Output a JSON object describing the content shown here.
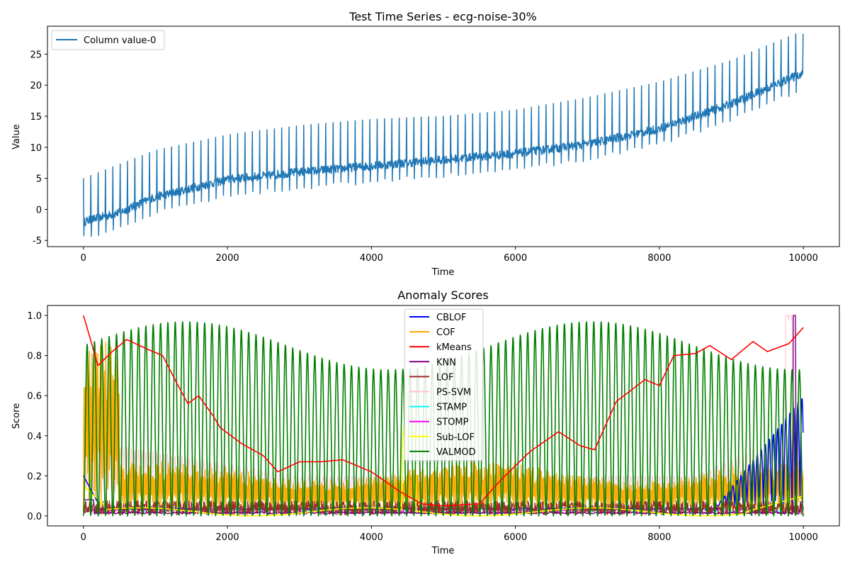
{
  "chart_data": [
    {
      "type": "line",
      "title": "Test Time Series - ecg-noise-30%",
      "xlabel": "Time",
      "ylabel": "Value",
      "xlim": [
        -500,
        10500
      ],
      "ylim": [
        -6,
        29.5
      ],
      "xticks": [
        0,
        2000,
        4000,
        6000,
        8000,
        10000
      ],
      "yticks": [
        -5,
        0,
        5,
        10,
        15,
        20,
        25
      ],
      "legend_position": "upper-left",
      "series": [
        {
          "name": "Column value-0",
          "color": "#1f77b4",
          "description_free": true,
          "baseline_points": [
            [
              0,
              -2
            ],
            [
              500,
              -0.5
            ],
            [
              1000,
              2
            ],
            [
              2000,
              4.8
            ],
            [
              3000,
              6
            ],
            [
              4000,
              7
            ],
            [
              5000,
              8
            ],
            [
              6000,
              9
            ],
            [
              7000,
              10.5
            ],
            [
              8000,
              13
            ],
            [
              9000,
              17
            ],
            [
              9500,
              19.5
            ],
            [
              10000,
              22
            ]
          ],
          "peak_points": [
            [
              0,
              5
            ],
            [
              1000,
              9.5
            ],
            [
              2000,
              12
            ],
            [
              3000,
              13.5
            ],
            [
              4000,
              14.5
            ],
            [
              5000,
              15
            ],
            [
              6000,
              16
            ],
            [
              7000,
              18
            ],
            [
              8000,
              20.5
            ],
            [
              9000,
              24
            ],
            [
              9900,
              28.3
            ]
          ],
          "trough_offset": -2.5,
          "beat_period": 102
        }
      ]
    },
    {
      "type": "line",
      "title": "Anomaly Scores",
      "xlabel": "Time",
      "ylabel": "Score",
      "xlim": [
        -500,
        10500
      ],
      "ylim": [
        -0.05,
        1.05
      ],
      "xticks": [
        0,
        2000,
        4000,
        6000,
        8000,
        10000
      ],
      "yticks": [
        0.0,
        0.2,
        0.4,
        0.6,
        0.8,
        1.0
      ],
      "legend_position": "upper-center",
      "series": [
        {
          "name": "CBLOF",
          "color": "#0000ff"
        },
        {
          "name": "COF",
          "color": "#ffa500"
        },
        {
          "name": "kMeans",
          "color": "#ff0000",
          "points": [
            [
              0,
              1.0
            ],
            [
              50,
              0.94
            ],
            [
              200,
              0.75
            ],
            [
              400,
              0.82
            ],
            [
              600,
              0.88
            ],
            [
              900,
              0.83
            ],
            [
              1100,
              0.8
            ],
            [
              1300,
              0.66
            ],
            [
              1450,
              0.56
            ],
            [
              1600,
              0.6
            ],
            [
              1800,
              0.5
            ],
            [
              1900,
              0.44
            ],
            [
              2200,
              0.36
            ],
            [
              2500,
              0.3
            ],
            [
              2700,
              0.22
            ],
            [
              3000,
              0.27
            ],
            [
              3300,
              0.27
            ],
            [
              3600,
              0.28
            ],
            [
              4000,
              0.22
            ],
            [
              4400,
              0.12
            ],
            [
              4550,
              0.09
            ],
            [
              4700,
              0.06
            ],
            [
              5000,
              0.05
            ],
            [
              5500,
              0.06
            ],
            [
              5800,
              0.18
            ],
            [
              6200,
              0.32
            ],
            [
              6600,
              0.42
            ],
            [
              6900,
              0.35
            ],
            [
              7100,
              0.33
            ],
            [
              7400,
              0.57
            ],
            [
              7800,
              0.68
            ],
            [
              8000,
              0.65
            ],
            [
              8200,
              0.8
            ],
            [
              8500,
              0.81
            ],
            [
              8700,
              0.85
            ],
            [
              9000,
              0.78
            ],
            [
              9300,
              0.87
            ],
            [
              9500,
              0.82
            ],
            [
              9800,
              0.86
            ],
            [
              10000,
              0.94
            ]
          ]
        },
        {
          "name": "KNN",
          "color": "#800080"
        },
        {
          "name": "LOF",
          "color": "#a52a2a"
        },
        {
          "name": "PS-SVM",
          "color": "#ffc0cb"
        },
        {
          "name": "STAMP",
          "color": "#00ffff"
        },
        {
          "name": "STOMP",
          "color": "#ff00ff"
        },
        {
          "name": "Sub-LOF",
          "color": "#ffff00"
        },
        {
          "name": "VALMOD",
          "color": "#008000"
        }
      ]
    }
  ]
}
